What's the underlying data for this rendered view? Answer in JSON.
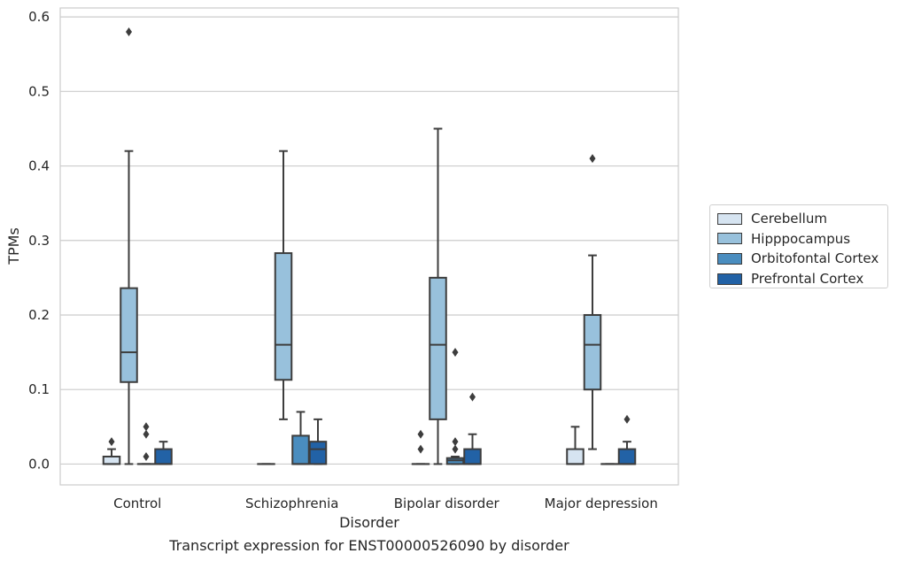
{
  "chart_data": {
    "type": "box",
    "title": "Transcript expression for ENST00000526090 by disorder",
    "xlabel": "Disorder",
    "ylabel": "TPMs",
    "ylim": [
      -0.028,
      0.612
    ],
    "yticks": [
      "0.0",
      "0.1",
      "0.2",
      "0.3",
      "0.4",
      "0.5",
      "0.6"
    ],
    "grid": true,
    "legend_position": "right",
    "categories": [
      "Control",
      "Schizophrenia",
      "Bipolar disorder",
      "Major depression"
    ],
    "series": [
      {
        "name": "Cerebellum",
        "color": "#d6e4f1",
        "boxes": [
          {
            "low": 0.0,
            "q1": 0.0,
            "median": 0.0,
            "q3": 0.01,
            "high": 0.02,
            "outliers": [
              0.03
            ]
          },
          {
            "low": 0.0,
            "q1": 0.0,
            "median": 0.0,
            "q3": 0.0,
            "high": 0.0,
            "outliers": []
          },
          {
            "low": 0.0,
            "q1": 0.0,
            "median": 0.0,
            "q3": 0.0,
            "high": 0.0,
            "outliers": [
              0.02,
              0.04
            ]
          },
          {
            "low": 0.0,
            "q1": 0.0,
            "median": 0.0,
            "q3": 0.02,
            "high": 0.05,
            "outliers": []
          }
        ]
      },
      {
        "name": "Hipppocampus",
        "color": "#98c1dc",
        "boxes": [
          {
            "low": 0.0,
            "q1": 0.11,
            "median": 0.15,
            "q3": 0.236,
            "high": 0.42,
            "outliers": [
              0.58
            ]
          },
          {
            "low": 0.06,
            "q1": 0.113,
            "median": 0.16,
            "q3": 0.283,
            "high": 0.42,
            "outliers": []
          },
          {
            "low": 0.0,
            "q1": 0.06,
            "median": 0.16,
            "q3": 0.25,
            "high": 0.45,
            "outliers": []
          },
          {
            "low": 0.02,
            "q1": 0.1,
            "median": 0.16,
            "q3": 0.2,
            "high": 0.28,
            "outliers": [
              0.41
            ]
          }
        ]
      },
      {
        "name": "Orbitofontal Cortex",
        "color": "#4a8dbf",
        "boxes": [
          {
            "low": 0.0,
            "q1": 0.0,
            "median": 0.0,
            "q3": 0.0,
            "high": 0.0,
            "outliers": [
              0.01,
              0.04,
              0.05
            ]
          },
          {
            "low": 0.0,
            "q1": 0.0,
            "median": 0.0,
            "q3": 0.038,
            "high": 0.07,
            "outliers": []
          },
          {
            "low": 0.0,
            "q1": 0.0,
            "median": 0.005,
            "q3": 0.008,
            "high": 0.01,
            "outliers": [
              0.02,
              0.03,
              0.15
            ]
          },
          {
            "low": 0.0,
            "q1": 0.0,
            "median": 0.0,
            "q3": 0.0,
            "high": 0.0,
            "outliers": []
          }
        ]
      },
      {
        "name": "Prefrontal Cortex",
        "color": "#2262a6",
        "boxes": [
          {
            "low": 0.0,
            "q1": 0.0,
            "median": 0.0,
            "q3": 0.02,
            "high": 0.03,
            "outliers": []
          },
          {
            "low": 0.0,
            "q1": 0.0,
            "median": 0.02,
            "q3": 0.03,
            "high": 0.06,
            "outliers": []
          },
          {
            "low": 0.0,
            "q1": 0.0,
            "median": 0.0,
            "q3": 0.02,
            "high": 0.04,
            "outliers": [
              0.09
            ]
          },
          {
            "low": 0.0,
            "q1": 0.0,
            "median": 0.0,
            "q3": 0.02,
            "high": 0.03,
            "outliers": [
              0.06
            ]
          }
        ]
      }
    ]
  }
}
